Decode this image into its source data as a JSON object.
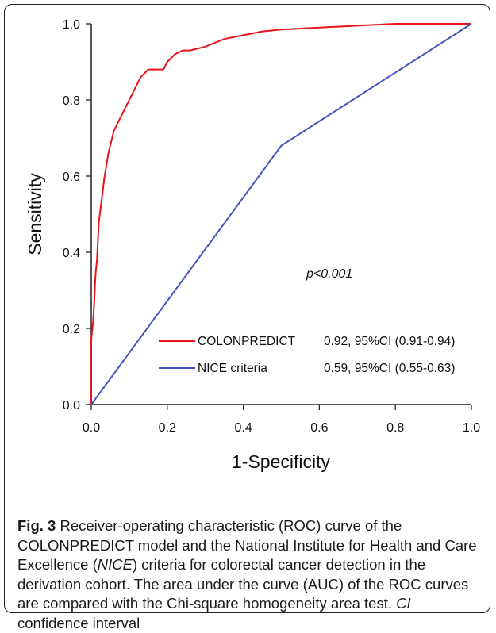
{
  "chart_data": {
    "type": "line",
    "xlabel": "1-Specificity",
    "ylabel": "Sensitivity",
    "xlim": [
      0,
      1
    ],
    "ylim": [
      0,
      1
    ],
    "x_ticks": [
      "0.0",
      "0.2",
      "0.4",
      "0.6",
      "0.8",
      "1.0"
    ],
    "y_ticks": [
      "0.0",
      "0.2",
      "0.4",
      "0.6",
      "0.8",
      "1.0"
    ],
    "grid": false,
    "annotation": "p<0.001",
    "legend_position": "bottom-right",
    "series": [
      {
        "name": "COLONPREDICT",
        "stat": "0.92,  95%CI (0.91-0.94)",
        "color": "#e8141c",
        "x": [
          0.0,
          0.0,
          0.005,
          0.008,
          0.01,
          0.012,
          0.015,
          0.018,
          0.02,
          0.025,
          0.03,
          0.035,
          0.04,
          0.045,
          0.05,
          0.055,
          0.06,
          0.07,
          0.08,
          0.09,
          0.1,
          0.11,
          0.12,
          0.13,
          0.14,
          0.15,
          0.17,
          0.19,
          0.2,
          0.22,
          0.24,
          0.26,
          0.3,
          0.35,
          0.4,
          0.45,
          0.5,
          0.6,
          0.7,
          0.8,
          0.9,
          1.0
        ],
        "y": [
          0.0,
          0.17,
          0.22,
          0.27,
          0.32,
          0.35,
          0.38,
          0.44,
          0.48,
          0.52,
          0.56,
          0.6,
          0.63,
          0.66,
          0.68,
          0.7,
          0.72,
          0.74,
          0.76,
          0.78,
          0.8,
          0.82,
          0.84,
          0.86,
          0.87,
          0.88,
          0.88,
          0.88,
          0.9,
          0.92,
          0.93,
          0.93,
          0.94,
          0.96,
          0.97,
          0.98,
          0.985,
          0.99,
          0.995,
          1.0,
          1.0,
          1.0
        ]
      },
      {
        "name": "NICE  criteria",
        "stat": "0.59,  95%CI (0.55-0.63)",
        "color": "#4455bb",
        "x": [
          0.0,
          0.5,
          1.0
        ],
        "y": [
          0.0,
          0.68,
          1.0
        ]
      }
    ]
  },
  "caption": {
    "label": "Fig. 3",
    "text_1": " Receiver-operating characteristic (ROC) curve of the COLONPREDICT model and the National Institute for Health and Care Excellence (",
    "abbr_1": "NICE",
    "text_2": ") criteria for colorectal cancer detection in the derivation cohort. The area under the curve (AUC) of the ROC curves are compared with the Chi-square homogeneity area test. ",
    "abbr_2": "CI",
    "text_3": " confidence interval"
  }
}
